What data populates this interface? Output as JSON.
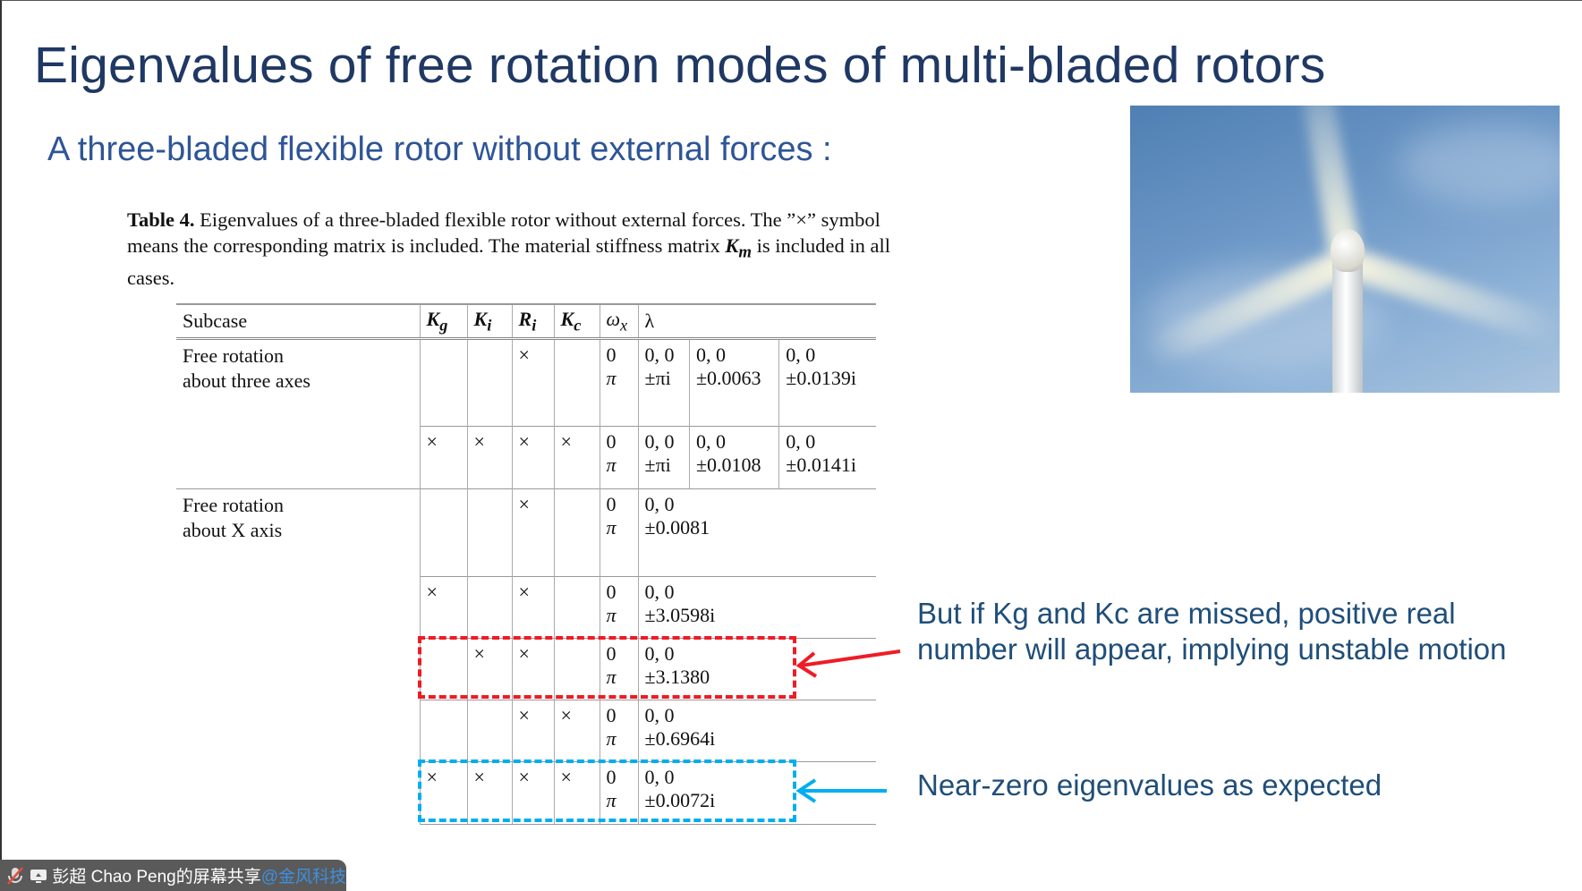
{
  "title": "Eigenvalues of free rotation modes of multi-bladed rotors",
  "subtitle": "A three-bladed flexible rotor without external forces :",
  "caption": {
    "label": "Table 4.",
    "text_1": " Eigenvalues of a three-bladed flexible rotor without external forces. The ”×” symbol means the corresponding matrix is included. The material stiffness matrix ",
    "matrix": "K",
    "matrix_sub": "m",
    "text_2": " is included in all cases."
  },
  "table": {
    "headers": [
      "Subcase",
      "Kg",
      "Ki",
      "Ri",
      "Kc",
      "ωx",
      "λ"
    ],
    "groups": [
      {
        "subcase": "Free rotation\nabout three axes",
        "rows": [
          {
            "marks": [
              "",
              "",
              "×",
              ""
            ],
            "omega": [
              "0",
              "π"
            ],
            "lambda": [
              [
                "0, 0",
                "±πi"
              ],
              [
                "0, 0",
                "±0.0063"
              ],
              [
                "0, 0",
                "±0.0139i"
              ]
            ]
          },
          {
            "marks": [
              "×",
              "×",
              "×",
              "×"
            ],
            "omega": [
              "0",
              "π"
            ],
            "lambda": [
              [
                "0, 0",
                "±πi"
              ],
              [
                "0, 0",
                "±0.0108"
              ],
              [
                "0, 0",
                "±0.0141i"
              ]
            ]
          }
        ]
      },
      {
        "subcase": "Free rotation\nabout X axis",
        "rows": [
          {
            "marks": [
              "",
              "",
              "×",
              ""
            ],
            "omega": [
              "0",
              "π"
            ],
            "lambda": [
              [
                "0, 0",
                "±0.0081"
              ]
            ]
          },
          {
            "marks": [
              "×",
              "",
              "×",
              ""
            ],
            "omega": [
              "0",
              "π"
            ],
            "lambda": [
              [
                "0, 0",
                "±3.0598i"
              ]
            ]
          },
          {
            "marks": [
              "",
              "×",
              "×",
              ""
            ],
            "omega": [
              "0",
              "π"
            ],
            "lambda": [
              [
                "0, 0",
                "±3.1380"
              ]
            ]
          },
          {
            "marks": [
              "",
              "",
              "×",
              "×"
            ],
            "omega": [
              "0",
              "π"
            ],
            "lambda": [
              [
                "0, 0",
                "±0.6964i"
              ]
            ]
          },
          {
            "marks": [
              "×",
              "×",
              "×",
              "×"
            ],
            "omega": [
              "0",
              "π"
            ],
            "lambda": [
              [
                "0, 0",
                "±0.0072i"
              ]
            ]
          }
        ]
      }
    ]
  },
  "annotations": {
    "unstable_line1": "But if Kg and Kc are missed, positive real",
    "unstable_line2": "number will appear, implying unstable motion",
    "expected": "Near-zero eigenvalues as expected",
    "red": "#ee1c25",
    "blue": "#00aeef"
  },
  "share_bar": {
    "presenter": "彭超 Chao Peng的屏幕共享",
    "watermark": "@金风科技",
    "icons": [
      "mic-muted-icon",
      "screen-share-icon"
    ]
  }
}
